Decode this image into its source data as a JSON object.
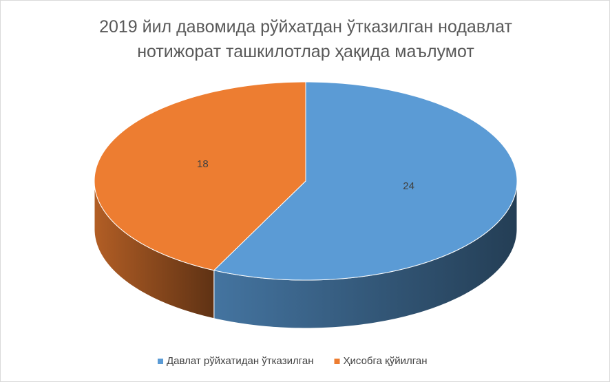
{
  "chart_data": {
    "type": "pie3d",
    "title": "2019 йил давомида рўйхатдан ўтказилган нодавлат нотижорат ташкилотлар ҳақида маълумот",
    "categories": [
      "Давлат рўйхатидан ўтказилган",
      "Ҳисобга қўйилган"
    ],
    "values": [
      24,
      18
    ],
    "colors": [
      "#5b9bd5",
      "#ed7d31"
    ],
    "legend": "bottom"
  }
}
